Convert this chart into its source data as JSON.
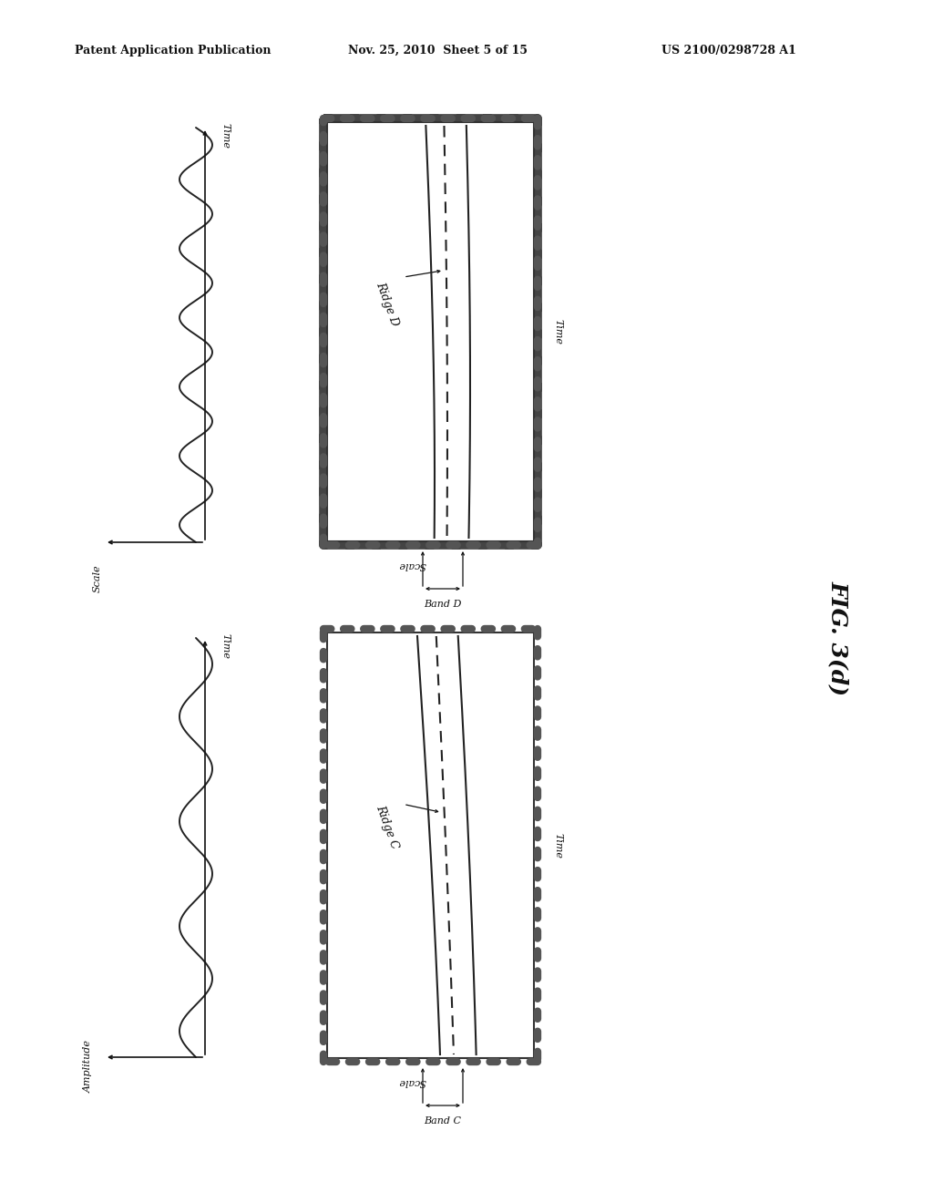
{
  "header_left": "Patent Application Publication",
  "header_mid": "Nov. 25, 2010  Sheet 5 of 15",
  "header_right": "US 2100/0298728 A1",
  "fig_label": "FIG. 3(d)",
  "bg_color": "#ffffff",
  "top_panel": {
    "wave_label_x": "Scale",
    "wave_label_y": "Time",
    "scalogram_label_x": "Scale",
    "scalogram_label_y": "Time",
    "ridge_label": "Ridge D",
    "band_label": "Band D"
  },
  "bot_panel": {
    "wave_label_x": "Amplitude",
    "wave_label_y": "Time",
    "scalogram_label_x": "Scale",
    "scalogram_label_y": "Time",
    "ridge_label": "Ridge C",
    "band_label": "Band C"
  }
}
